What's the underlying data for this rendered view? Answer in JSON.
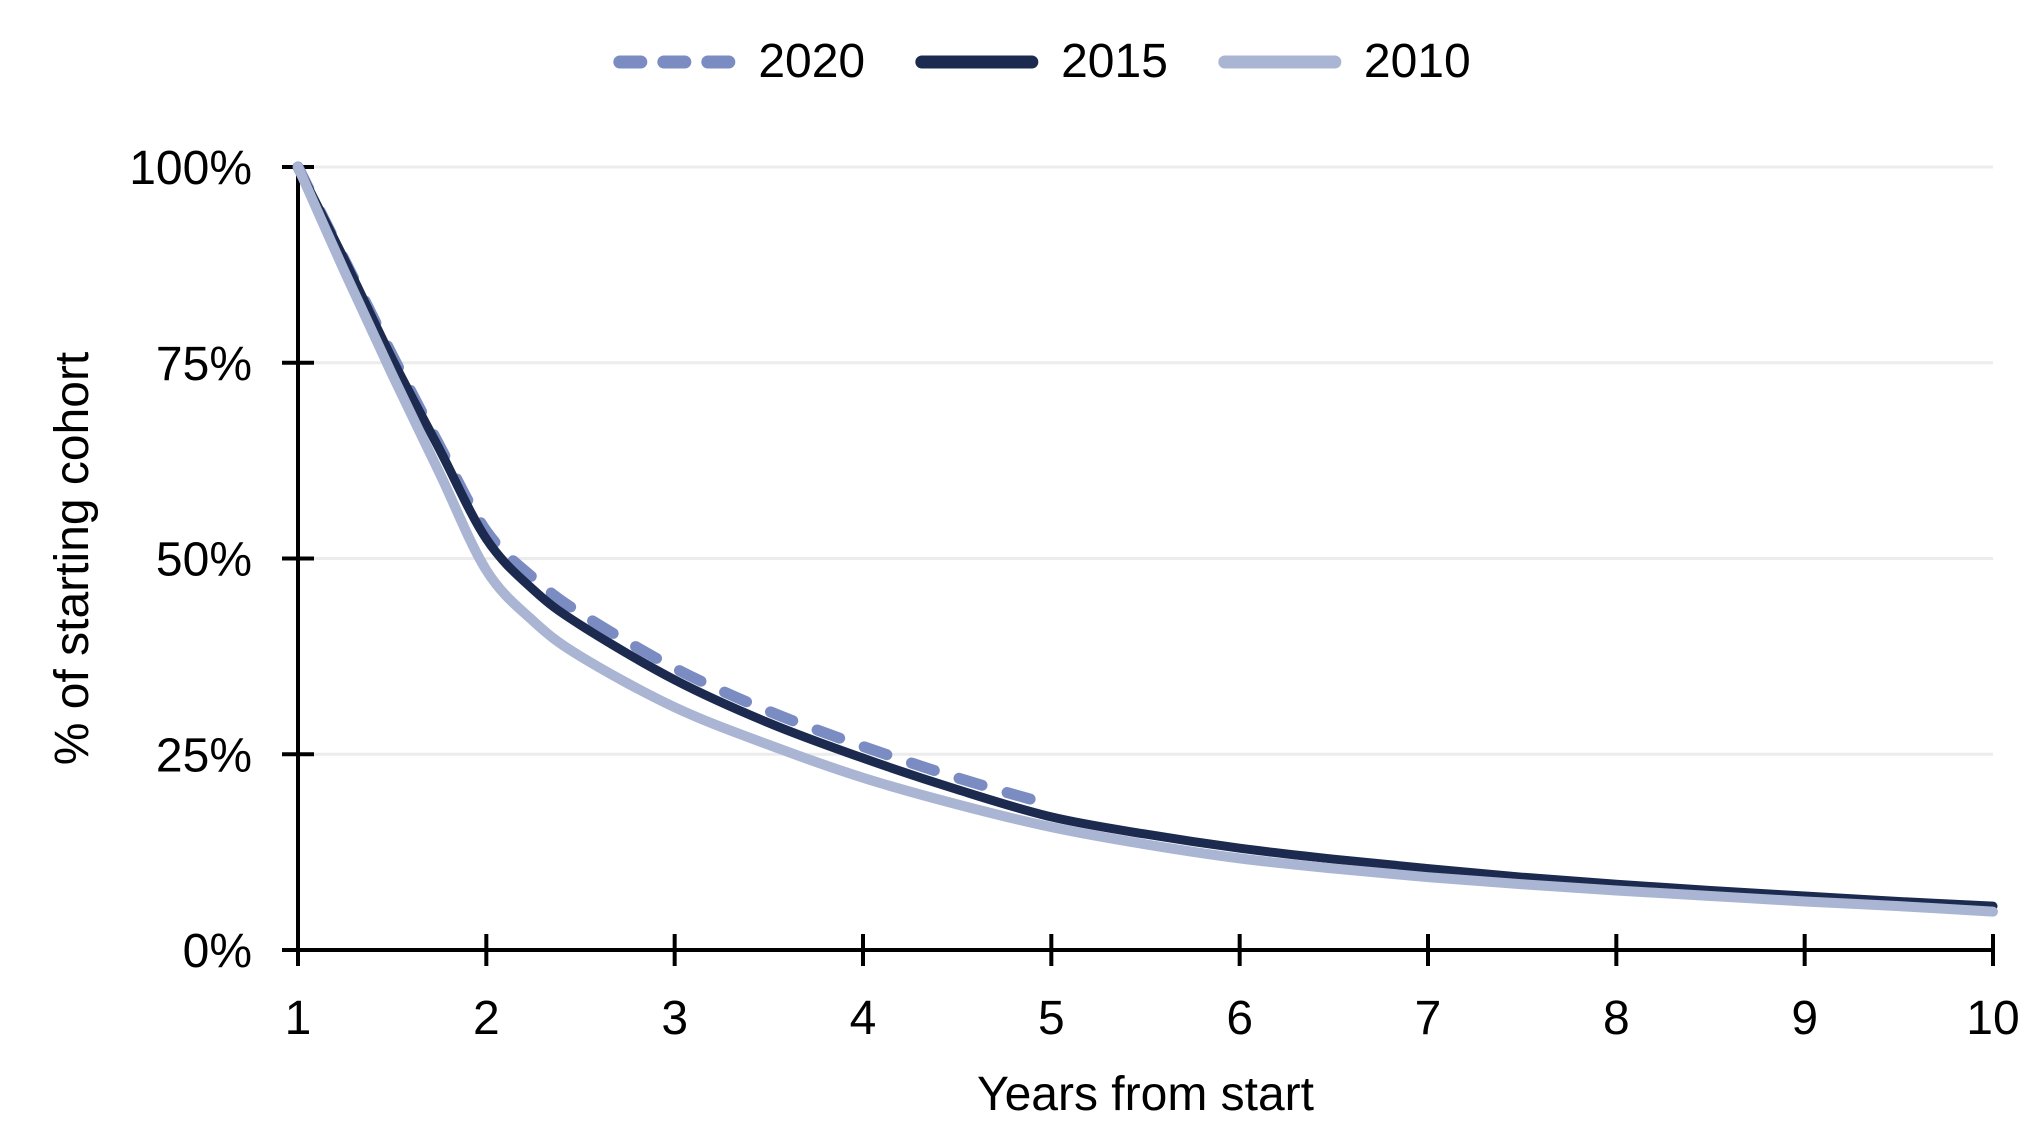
{
  "chart_data": {
    "type": "line",
    "title": "",
    "xlabel": "Years from start",
    "ylabel": "% of starting cohort",
    "xlim": [
      1,
      10
    ],
    "ylim": [
      0,
      100
    ],
    "x_ticks": [
      1,
      2,
      3,
      4,
      5,
      6,
      7,
      8,
      9,
      10
    ],
    "y_ticks": [
      0,
      25,
      50,
      75,
      100
    ],
    "y_tick_suffix": "%",
    "grid": "horizontal-only",
    "legend_position": "top-center",
    "axis_color": "#000000",
    "gridline_color": "#ececec",
    "text_color": "#000000",
    "series": [
      {
        "name": "2020",
        "color": "#7b8cc3",
        "style": "dashed",
        "points": [
          [
            1,
            100
          ],
          [
            1.25,
            88
          ],
          [
            1.5,
            76
          ],
          [
            1.75,
            64.5
          ],
          [
            2,
            53.5
          ],
          [
            2.25,
            47.5
          ],
          [
            2.5,
            43
          ],
          [
            3,
            36
          ],
          [
            3.5,
            30.5
          ],
          [
            4,
            26
          ],
          [
            4.5,
            22
          ],
          [
            5,
            18.5
          ]
        ]
      },
      {
        "name": "2015",
        "color": "#1b2a4e",
        "style": "solid",
        "points": [
          [
            1,
            100
          ],
          [
            1.25,
            88
          ],
          [
            1.5,
            75.5
          ],
          [
            1.75,
            64
          ],
          [
            2,
            52.5
          ],
          [
            2.25,
            46
          ],
          [
            2.5,
            41.5
          ],
          [
            3,
            34.5
          ],
          [
            3.5,
            29
          ],
          [
            4,
            24.5
          ],
          [
            4.5,
            20.5
          ],
          [
            5,
            17
          ],
          [
            5.5,
            14.8
          ],
          [
            6,
            13
          ],
          [
            6.5,
            11.6
          ],
          [
            7,
            10.4
          ],
          [
            7.5,
            9.3
          ],
          [
            8,
            8.4
          ],
          [
            8.5,
            7.6
          ],
          [
            9,
            6.9
          ],
          [
            9.5,
            6.2
          ],
          [
            10,
            5.6
          ]
        ]
      },
      {
        "name": "2010",
        "color": "#a9b5d3",
        "style": "solid",
        "points": [
          [
            1,
            100
          ],
          [
            1.25,
            86.5
          ],
          [
            1.5,
            73.5
          ],
          [
            1.75,
            61
          ],
          [
            2,
            48.5
          ],
          [
            2.25,
            42
          ],
          [
            2.5,
            37.5
          ],
          [
            3,
            31
          ],
          [
            3.5,
            26.2
          ],
          [
            4,
            22
          ],
          [
            4.5,
            18.6
          ],
          [
            5,
            15.7
          ],
          [
            5.5,
            13.5
          ],
          [
            6,
            11.7
          ],
          [
            6.5,
            10.4
          ],
          [
            7,
            9.3
          ],
          [
            7.5,
            8.4
          ],
          [
            8,
            7.6
          ],
          [
            8.5,
            6.9
          ],
          [
            9,
            6.2
          ],
          [
            9.5,
            5.6
          ],
          [
            10,
            4.9
          ]
        ]
      }
    ]
  }
}
